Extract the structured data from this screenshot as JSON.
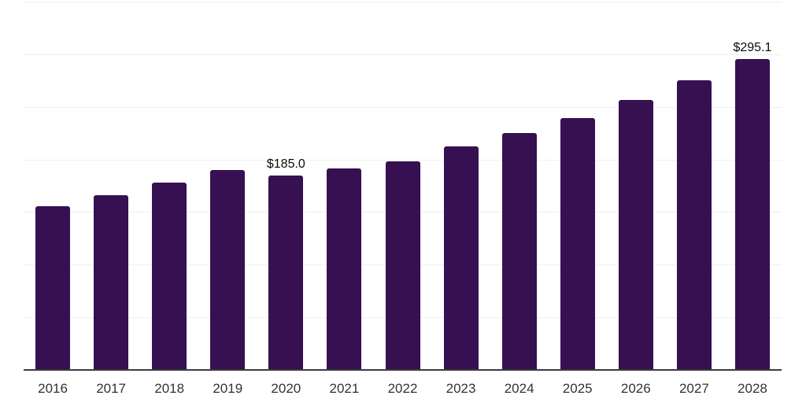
{
  "chart_data": {
    "type": "bar",
    "title": "",
    "xlabel": "",
    "ylabel": "",
    "categories": [
      "2016",
      "2017",
      "2018",
      "2019",
      "2020",
      "2021",
      "2022",
      "2023",
      "2024",
      "2025",
      "2026",
      "2027",
      "2028"
    ],
    "values": [
      155.6,
      166.0,
      178.0,
      190.0,
      185.0,
      191.5,
      198.2,
      212.4,
      225.1,
      239.3,
      256.5,
      275.2,
      295.1
    ],
    "annotations": [
      {
        "category": "2020",
        "text": "$185.0"
      },
      {
        "category": "2028",
        "text": "$295.1"
      }
    ],
    "ylim": [
      0,
      350
    ],
    "grid_step": 50,
    "grid": "horizontal-only",
    "legend": "none",
    "y_tick_labels_visible": false,
    "colors": {
      "bar": "#361050",
      "gridline": "#f0f0f1",
      "axis_line": "#3c3c3c",
      "tick_label": "#333333",
      "value_label": "#0a0a0a",
      "background": "#ffffff"
    }
  }
}
